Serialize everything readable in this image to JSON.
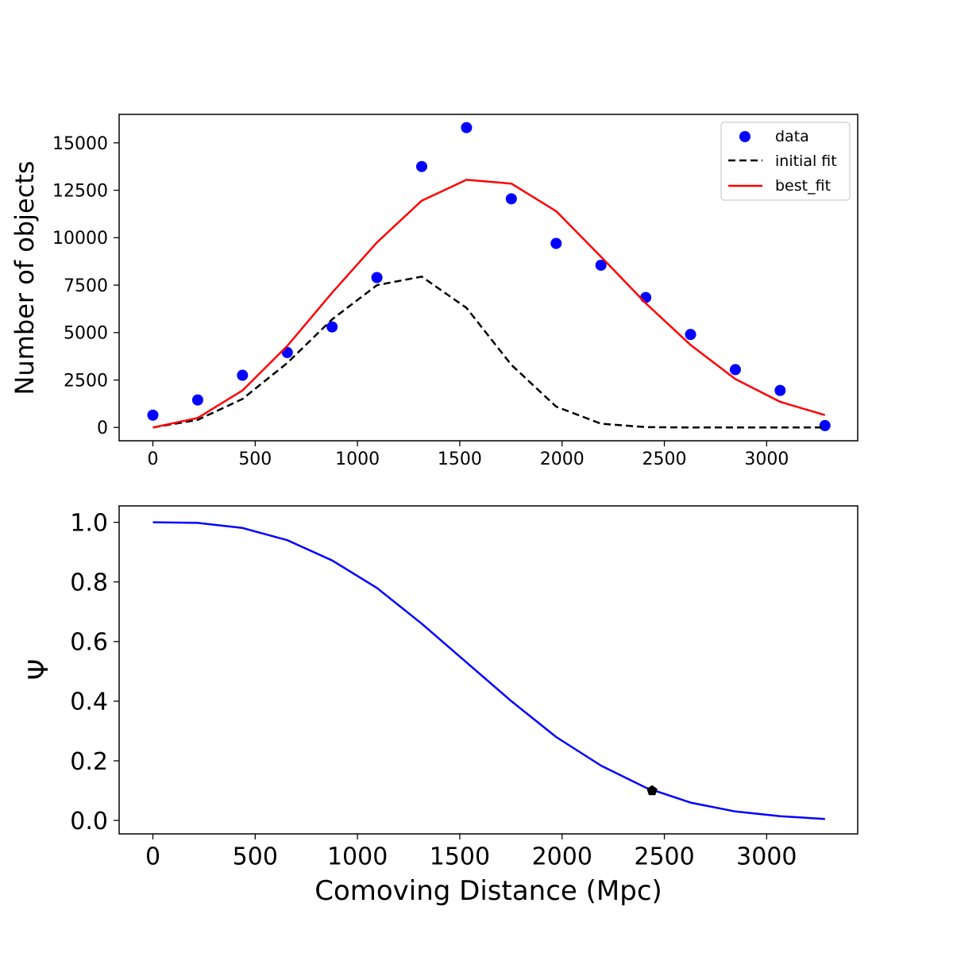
{
  "chart_data": [
    {
      "type": "scatter+line",
      "title": "",
      "xlabel": "",
      "ylabel": "Number of objects",
      "xlim": [
        -165,
        3445
      ],
      "ylim": [
        -700,
        16500
      ],
      "xticks": [
        0,
        500,
        1000,
        1500,
        2000,
        2500,
        3000
      ],
      "yticks": [
        0,
        2500,
        5000,
        7500,
        10000,
        12500,
        15000
      ],
      "legend": {
        "position": "top-right",
        "entries": [
          "data",
          "initial fit",
          "best_fit"
        ]
      },
      "x": [
        0,
        219,
        438,
        657,
        876,
        1095,
        1314,
        1533,
        1752,
        1971,
        2190,
        2409,
        2628,
        2847,
        3066,
        3285
      ],
      "series": [
        {
          "name": "data",
          "style": "points",
          "color": "#0000ff",
          "values": [
            650,
            1450,
            2750,
            3950,
            5300,
            7900,
            13750,
            15800,
            12050,
            9700,
            8550,
            6850,
            4900,
            3050,
            1950,
            100
          ]
        },
        {
          "name": "initial fit",
          "style": "dashed",
          "color": "#000000",
          "values": [
            0,
            400,
            1500,
            3400,
            5700,
            7500,
            7950,
            6300,
            3300,
            1100,
            200,
            20,
            0,
            0,
            0,
            0
          ]
        },
        {
          "name": "best_fit",
          "style": "solid",
          "color": "#ff0000",
          "values": [
            0,
            500,
            1950,
            4300,
            7100,
            9750,
            11950,
            13050,
            12850,
            11400,
            9000,
            6550,
            4350,
            2550,
            1350,
            650
          ]
        }
      ]
    },
    {
      "type": "line",
      "title": "",
      "xlabel": "Comoving Distance (Mpc)",
      "ylabel": "Ψ",
      "xlim": [
        -165,
        3445
      ],
      "ylim": [
        -0.045,
        1.055
      ],
      "xticks": [
        0,
        500,
        1000,
        1500,
        2000,
        2500,
        3000
      ],
      "yticks": [
        0.0,
        0.2,
        0.4,
        0.6,
        0.8,
        1.0
      ],
      "x": [
        0,
        219,
        438,
        657,
        876,
        1095,
        1314,
        1533,
        1752,
        1971,
        2190,
        2409,
        2628,
        2847,
        3066,
        3285
      ],
      "series": [
        {
          "name": "psi",
          "style": "solid",
          "color": "#0000ff",
          "values": [
            1.0,
            0.998,
            0.981,
            0.94,
            0.872,
            0.78,
            0.66,
            0.53,
            0.4,
            0.28,
            0.184,
            0.11,
            0.06,
            0.03,
            0.014,
            0.005
          ]
        }
      ],
      "marker": {
        "x": 2440,
        "y": 0.1,
        "color": "#000000",
        "shape": "pentagon"
      }
    }
  ]
}
